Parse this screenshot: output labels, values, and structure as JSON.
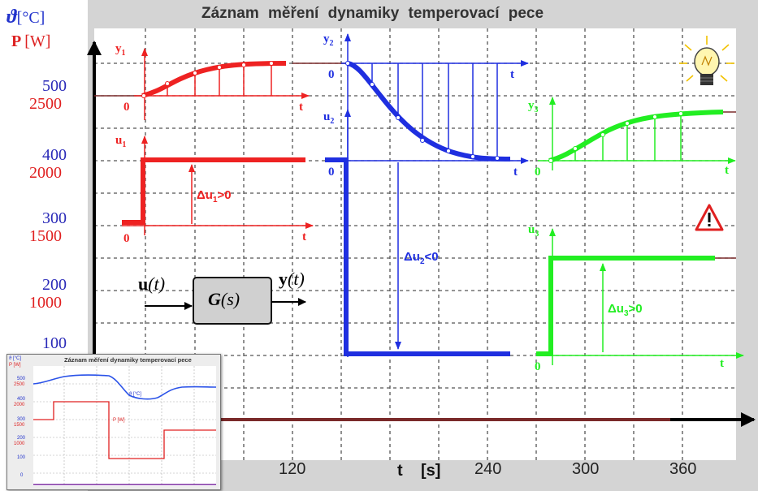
{
  "title": "Záznam měření dynamiky temperovací pece",
  "y_axis": {
    "theta_symbol": "ϑ",
    "theta_unit": "[°C]",
    "power_symbol": "P",
    "power_unit": "[W]",
    "temp_ticks": [
      "500",
      "400",
      "300",
      "200",
      "100"
    ],
    "power_ticks": [
      "2500",
      "2000",
      "1500",
      "1000"
    ]
  },
  "x_axis": {
    "label_t": "t",
    "label_unit": "[s]",
    "ticks": [
      "120",
      "240",
      "300",
      "360"
    ]
  },
  "plots": {
    "y1_label": "y",
    "y1_sub": "1",
    "u1_label": "u",
    "u1_sub": "1",
    "y2_label": "y",
    "y2_sub": "2",
    "u2_label": "u",
    "u2_sub": "2",
    "y3_label": "y",
    "y3_sub": "3",
    "u3_label": "u",
    "u3_sub": "3",
    "zero": "0",
    "t": "t",
    "du1": "Δu",
    "du1_sub": "1",
    "du1_rel": ">0",
    "du2": "Δu",
    "du2_sub": "2",
    "du2_rel": "<0",
    "du3": "Δu",
    "du3_sub": "3",
    "du3_rel": ">0"
  },
  "block": {
    "input": "u",
    "input_arg": "(t)",
    "output": "y",
    "output_arg": "(t)",
    "transfer": "G",
    "transfer_arg": "(s)"
  },
  "icons": [
    "lightbulb-icon",
    "warning-icon"
  ],
  "colors": {
    "red": "#ee2222",
    "blue": "#1f2fe0",
    "green": "#22ee22",
    "background": "#d4d4d4",
    "plot_bg": "#ffffff",
    "trace": "#7a2a2a"
  },
  "thumbnail": {
    "title": "Záznam  měření dynamiky temperovací pece",
    "theta_label": "ϑ [°C]",
    "power_label": "P [W]",
    "temp_series_label": "ϑ [°C]",
    "power_series_label": "P [W]",
    "temp_ticks": [
      "500",
      "400",
      "300",
      "200",
      "100",
      "0"
    ],
    "power_ticks": [
      "2500",
      "2000",
      "1500",
      "1000"
    ]
  }
}
